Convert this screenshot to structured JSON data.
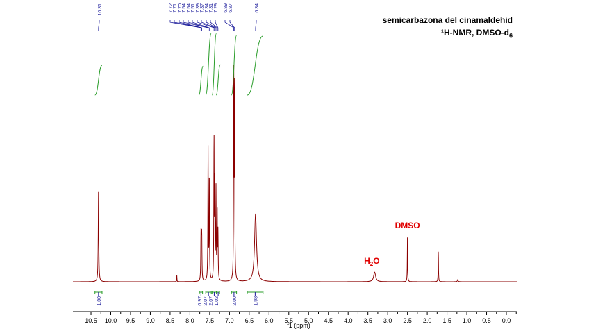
{
  "chart_data": {
    "type": "line",
    "title": "semicarbazona del cinamaldehid",
    "subtitle": "¹H-NMR, DMSO-d6",
    "xlabel": "f1 (ppm)",
    "xlim": [
      10.9,
      -0.3
    ],
    "x_reversed": true,
    "x_ticks": [
      "10.5",
      "10.0",
      "9.5",
      "9.0",
      "8.5",
      "8.0",
      "7.5",
      "7.0",
      "6.5",
      "6.0",
      "5.5",
      "5.0",
      "4.5",
      "4.0",
      "3.5",
      "3.0",
      "2.5",
      "2.0",
      "1.5",
      "1.0",
      "0.5",
      "0.0"
    ],
    "peaks": [
      {
        "ppm": 10.31,
        "intensity": 0.43,
        "width": 0.008
      },
      {
        "ppm": 8.33,
        "intensity": 0.03,
        "width": 0.004
      },
      {
        "ppm": 7.72,
        "intensity": 0.2,
        "width": 0.006
      },
      {
        "ppm": 7.71,
        "intensity": 0.12,
        "width": 0.006
      },
      {
        "ppm": 7.7,
        "intensity": 0.2,
        "width": 0.006
      },
      {
        "ppm": 7.54,
        "intensity": 0.62,
        "width": 0.006
      },
      {
        "ppm": 7.51,
        "intensity": 0.5,
        "width": 0.006
      },
      {
        "ppm": 7.39,
        "intensity": 0.66,
        "width": 0.006
      },
      {
        "ppm": 7.37,
        "intensity": 0.45,
        "width": 0.006
      },
      {
        "ppm": 7.34,
        "intensity": 0.42,
        "width": 0.006
      },
      {
        "ppm": 7.31,
        "intensity": 0.33,
        "width": 0.006
      },
      {
        "ppm": 7.29,
        "intensity": 0.22,
        "width": 0.006
      },
      {
        "ppm": 6.89,
        "intensity": 0.95,
        "width": 0.006
      },
      {
        "ppm": 6.87,
        "intensity": 0.9,
        "width": 0.006
      },
      {
        "ppm": 6.34,
        "intensity": 0.32,
        "width": 0.03
      },
      {
        "ppm": 3.33,
        "intensity": 0.045,
        "width": 0.03
      },
      {
        "ppm": 2.5,
        "intensity": 0.21,
        "width": 0.005
      },
      {
        "ppm": 1.72,
        "intensity": 0.145,
        "width": 0.005
      },
      {
        "ppm": 1.23,
        "intensity": 0.01,
        "width": 0.01
      }
    ],
    "peak_labels": [
      "10.31",
      "7.72",
      "7.71",
      "7.70",
      "7.54",
      "7.54",
      "7.51",
      "7.39",
      "7.37",
      "7.34",
      "7.31",
      "7.29",
      "6.89",
      "6.87",
      "6.34"
    ],
    "peak_label_targets": [
      10.31,
      7.72,
      7.71,
      7.7,
      7.54,
      7.54,
      7.51,
      7.39,
      7.37,
      7.34,
      7.31,
      7.29,
      6.89,
      6.87,
      6.34
    ],
    "integrals": [
      {
        "from": 10.4,
        "to": 10.22,
        "value": "1.00",
        "amount": 1.0
      },
      {
        "from": 7.76,
        "to": 7.68,
        "value": "0.97",
        "amount": 0.97
      },
      {
        "from": 7.6,
        "to": 7.46,
        "value": "2.07",
        "amount": 2.07
      },
      {
        "from": 7.44,
        "to": 7.33,
        "value": "2.07",
        "amount": 2.07
      },
      {
        "from": 7.32,
        "to": 7.25,
        "value": "1.02",
        "amount": 1.02
      },
      {
        "from": 6.95,
        "to": 6.82,
        "value": "2.00",
        "amount": 2.0
      },
      {
        "from": 6.55,
        "to": 6.15,
        "value": "1.98",
        "amount": 1.98
      }
    ],
    "annotations": [
      {
        "text": "DMSO",
        "ppm": 2.5
      },
      {
        "text": "H",
        "sub": "2",
        "after": "O",
        "ppm": 3.4
      }
    ],
    "colors": {
      "spectrum": "#8b0000",
      "integral": "#2a9d2a",
      "label": "#1a1a9a",
      "annotation": "#e00000"
    }
  }
}
